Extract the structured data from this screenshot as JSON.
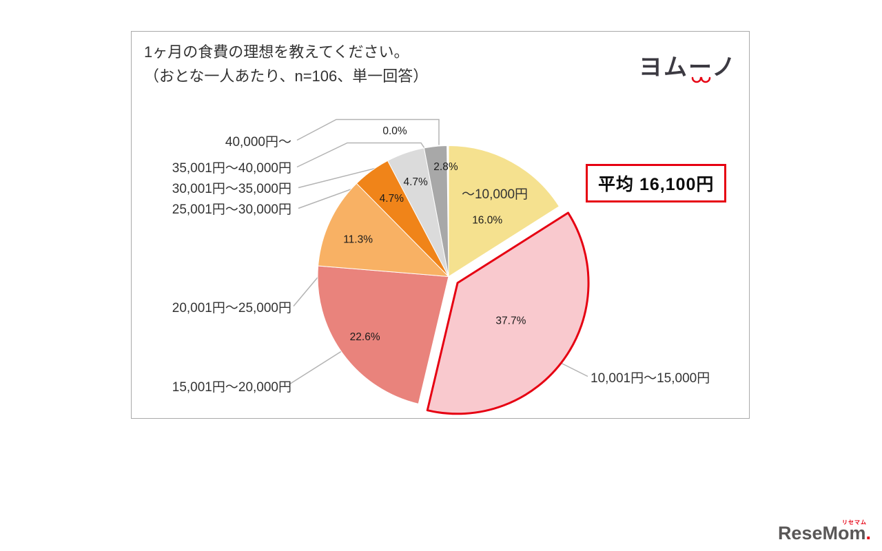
{
  "header": {
    "title_line1": "1ヶ月の食費の理想を教えてください。",
    "title_line2": "（おとな一人あたり、n=106、単一回答）",
    "logo_text": "ヨムーノ"
  },
  "average_box": {
    "label": "平均 16,100円",
    "border_color": "#E60012"
  },
  "chart_data": {
    "type": "pie",
    "title": "1ヶ月の食費の理想を教えてください。",
    "subtitle": "（おとな一人あたり、n=106、単一回答）",
    "n": 106,
    "legend_position": "none",
    "average_label": "平均 16,100円",
    "slices": [
      {
        "label": "～10,000円",
        "value": 16.0,
        "percent_label": "16.0%",
        "color": "#F5E18F"
      },
      {
        "label": "10,001円～15,000円",
        "value": 37.7,
        "percent_label": "37.7%",
        "color": "#F9C9CE",
        "exploded": true,
        "outline_color": "#E60012"
      },
      {
        "label": "15,001円～20,000円",
        "value": 22.6,
        "percent_label": "22.6%",
        "color": "#E9837C"
      },
      {
        "label": "20,001円～25,000円",
        "value": 11.3,
        "percent_label": "11.3%",
        "color": "#F8B164"
      },
      {
        "label": "25,001円～30,000円",
        "value": 4.7,
        "percent_label": "4.7%",
        "color": "#F08419"
      },
      {
        "label": "30,001円～35,000円",
        "value": 4.7,
        "percent_label": "4.7%",
        "color": "#DBDBDB"
      },
      {
        "label": "35,001円～40,000円",
        "value": 0.0,
        "percent_label": "0.0%",
        "color": "#CCCCCC"
      },
      {
        "label": "40,000円～",
        "value": 2.8,
        "percent_label": "2.8%",
        "color": "#A8A8A8"
      }
    ]
  },
  "footer": {
    "logo_text": "ReseMom",
    "logo_ruby": "リセマム",
    "logo_suffix": "."
  }
}
